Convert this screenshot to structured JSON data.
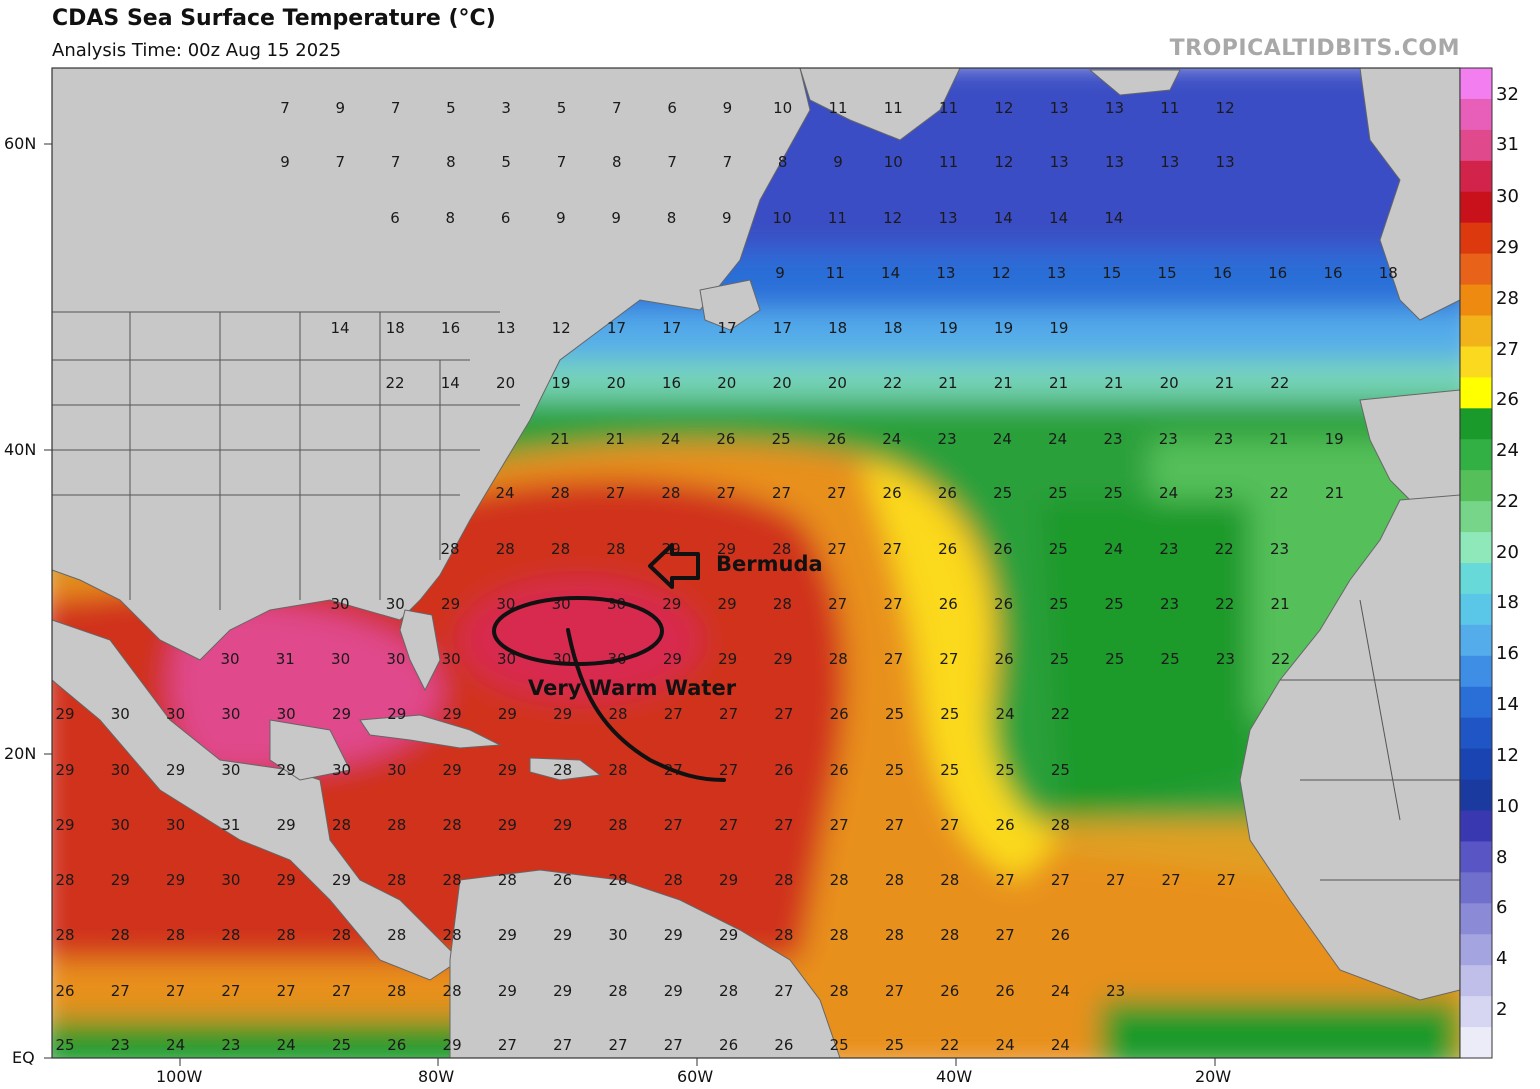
{
  "header": {
    "title": "CDAS Sea Surface Temperature (°C)",
    "subtitle": "Analysis Time: 00z Aug 15 2025",
    "brand": "TROPICALTIDBITS.COM"
  },
  "map": {
    "lat_labels": [
      "60N",
      "40N",
      "20N",
      "EQ"
    ],
    "lon_labels": [
      "100W",
      "80W",
      "60W",
      "40W",
      "20W"
    ],
    "land_color": "#c8c8c8",
    "border_color": "#555555",
    "annotations": {
      "arrow_label": "Bermuda",
      "circle_label": "Very Warm Water"
    },
    "sst_rows": [
      [
        "7",
        "9",
        "7",
        "5",
        "3",
        "5",
        "7",
        "6",
        "9",
        "10",
        "11",
        "11",
        "11",
        "12",
        "13",
        "13",
        "11",
        "12"
      ],
      [
        "9",
        "7",
        "7",
        "8",
        "5",
        "7",
        "8",
        "7",
        "7",
        "8",
        "9",
        "10",
        "11",
        "12",
        "13",
        "13",
        "13",
        "13"
      ],
      [
        "6",
        "8",
        "6",
        "9",
        "9",
        "8",
        "9",
        "10",
        "11",
        "12",
        "13",
        "14",
        "14",
        "14"
      ],
      [
        "9",
        "11",
        "14",
        "13",
        "12",
        "13",
        "15",
        "15",
        "16",
        "16",
        "16",
        "18"
      ],
      [
        "14",
        "18",
        "16",
        "13",
        "12",
        "17",
        "17",
        "17",
        "17",
        "18",
        "18",
        "19",
        "19",
        "19"
      ],
      [
        "22",
        "14",
        "20",
        "19",
        "20",
        "16",
        "20",
        "20",
        "20",
        "22",
        "21",
        "21",
        "21",
        "21",
        "20",
        "21",
        "22"
      ],
      [
        "21",
        "21",
        "24",
        "26",
        "25",
        "26",
        "24",
        "23",
        "24",
        "24",
        "23",
        "23",
        "23",
        "21",
        "19"
      ],
      [
        "24",
        "28",
        "27",
        "28",
        "27",
        "27",
        "27",
        "26",
        "26",
        "25",
        "25",
        "25",
        "24",
        "23",
        "22",
        "21"
      ],
      [
        "28",
        "28",
        "28",
        "28",
        "29",
        "29",
        "28",
        "27",
        "27",
        "26",
        "26",
        "25",
        "24",
        "23",
        "22",
        "23"
      ],
      [
        "30",
        "30",
        "29",
        "30",
        "30",
        "30",
        "29",
        "29",
        "28",
        "27",
        "27",
        "26",
        "26",
        "25",
        "25",
        "23",
        "22",
        "21"
      ],
      [
        "30",
        "31",
        "30",
        "30",
        "30",
        "30",
        "30",
        "30",
        "29",
        "29",
        "29",
        "28",
        "27",
        "27",
        "26",
        "25",
        "25",
        "25",
        "23",
        "22"
      ],
      [
        "29",
        "30",
        "30",
        "30",
        "30",
        "29",
        "29",
        "29",
        "29",
        "29",
        "28",
        "27",
        "27",
        "27",
        "26",
        "25",
        "25",
        "24",
        "22"
      ],
      [
        "29",
        "30",
        "29",
        "30",
        "29",
        "30",
        "30",
        "29",
        "29",
        "28",
        "28",
        "27",
        "27",
        "26",
        "26",
        "25",
        "25",
        "25",
        "25"
      ],
      [
        "29",
        "30",
        "30",
        "31",
        "29",
        "28",
        "28",
        "28",
        "29",
        "29",
        "28",
        "27",
        "27",
        "27",
        "27",
        "27",
        "27",
        "26",
        "28"
      ],
      [
        "28",
        "29",
        "29",
        "30",
        "29",
        "29",
        "28",
        "28",
        "28",
        "26",
        "28",
        "28",
        "29",
        "28",
        "28",
        "28",
        "28",
        "27",
        "27",
        "27",
        "27",
        "27"
      ],
      [
        "28",
        "28",
        "28",
        "28",
        "28",
        "28",
        "28",
        "28",
        "29",
        "29",
        "30",
        "29",
        "29",
        "28",
        "28",
        "28",
        "28",
        "27",
        "26"
      ],
      [
        "26",
        "27",
        "27",
        "27",
        "27",
        "27",
        "28",
        "28",
        "29",
        "29",
        "28",
        "29",
        "28",
        "27",
        "28",
        "27",
        "26",
        "26",
        "24",
        "23"
      ],
      [
        "25",
        "23",
        "24",
        "23",
        "24",
        "25",
        "26",
        "29",
        "27",
        "27",
        "27",
        "27",
        "26",
        "26",
        "25",
        "25",
        "22",
        "24",
        "24"
      ]
    ]
  },
  "colorbar": {
    "labels": [
      "32",
      "31",
      "30",
      "29",
      "28",
      "27",
      "26",
      "24",
      "22",
      "20",
      "18",
      "16",
      "14",
      "12",
      "10",
      "8",
      "6",
      "4",
      "2"
    ],
    "colors": [
      "#f27ef0",
      "#e85fb9",
      "#e04a8c",
      "#d2234a",
      "#c8111a",
      "#dc3a0e",
      "#e8621a",
      "#ee8a10",
      "#f2b21a",
      "#fbd91e",
      "#ffff00",
      "#1a9a2a",
      "#33b043",
      "#55c05a",
      "#77d58a",
      "#8ee8ba",
      "#66d9d8",
      "#5ac6e8",
      "#55acea",
      "#3f8ee6",
      "#2a6ed8",
      "#2055c6",
      "#1a44b2",
      "#1a3aa0",
      "#3a38b0",
      "#5a55c4",
      "#7070cc",
      "#8a8ad6",
      "#a4a4e0",
      "#bfbfea",
      "#d6d6f2",
      "#ececf8"
    ]
  }
}
